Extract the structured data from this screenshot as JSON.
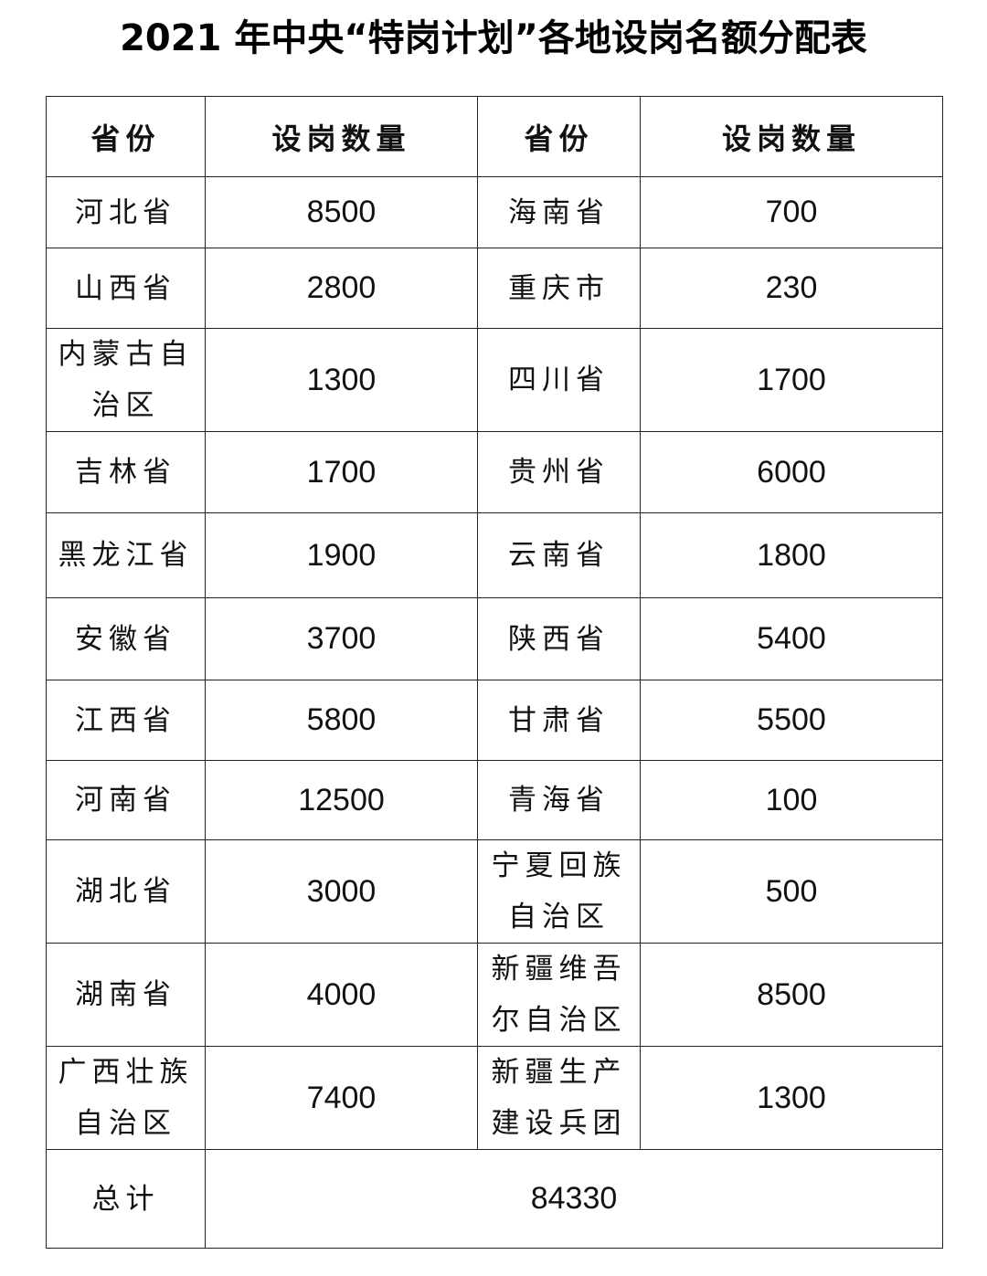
{
  "title": "2021 年中央“特岗计划”各地设岗名额分配表",
  "headers": [
    "省份",
    "设岗数量",
    "省份",
    "设岗数量"
  ],
  "rows": [
    [
      "河北省",
      "8500",
      "海南省",
      "700"
    ],
    [
      "山西省",
      "2800",
      "重庆市",
      "230"
    ],
    [
      "内蒙古自治区",
      "1300",
      "四川省",
      "1700"
    ],
    [
      "吉林省",
      "1700",
      "贵州省",
      "6000"
    ],
    [
      "黑龙江省",
      "1900",
      "云南省",
      "1800"
    ],
    [
      "安徽省",
      "3700",
      "陕西省",
      "5400"
    ],
    [
      "江西省",
      "5800",
      "甘肃省",
      "5500"
    ],
    [
      "河南省",
      "12500",
      "青海省",
      "100"
    ],
    [
      "湖北省",
      "3000",
      "宁夏回族自治区",
      "500"
    ],
    [
      "湖南省",
      "4000",
      "新疆维吾尔自治区",
      "8500"
    ],
    [
      "广西壮族自治区",
      "7400",
      "新疆生产建设兵团",
      "1300"
    ]
  ],
  "total": {
    "label": "总计",
    "value": "84330"
  }
}
